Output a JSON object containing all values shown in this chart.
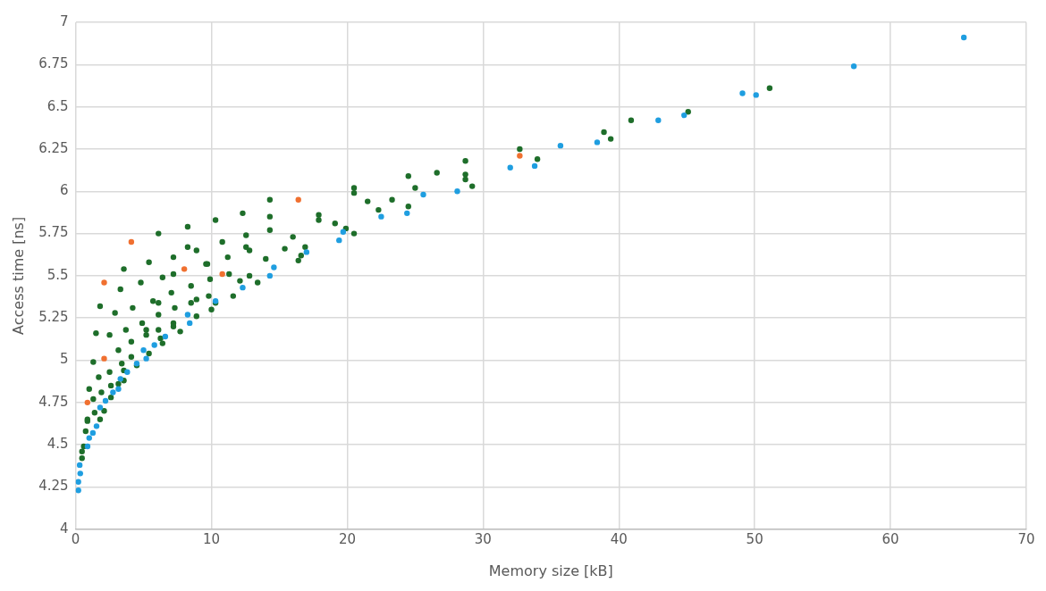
{
  "chart_data": {
    "type": "scatter",
    "xlabel": "Memory size [kB]",
    "ylabel": "Access time [ns]",
    "xlim": [
      0,
      70
    ],
    "xticks": [
      0,
      10,
      20,
      30,
      40,
      50,
      60,
      70
    ],
    "ylim": [
      4,
      7
    ],
    "yticks": [
      4,
      4.25,
      4.5,
      4.75,
      5,
      5.25,
      5.5,
      5.75,
      6,
      6.25,
      6.5,
      6.75,
      7
    ],
    "grid": true,
    "legend": false,
    "marker": "circle",
    "series": [
      {
        "color": "#1f9ee0",
        "x": [
          0.2,
          0.2,
          0.34,
          0.3,
          0.88,
          1.0,
          1.27,
          1.54,
          1.8,
          2.2,
          2.75,
          3.15,
          3.3,
          3.8,
          4.5,
          5.0,
          5.2,
          5.8,
          6.6,
          8.25,
          8.4,
          10.3,
          12.3,
          14.3,
          14.6,
          17.0,
          19.4,
          19.7,
          22.5,
          24.4,
          25.6,
          28.1,
          32.0,
          33.8,
          35.7,
          38.4,
          42.9,
          44.8,
          49.1,
          50.1,
          57.3,
          65.4
        ],
        "values": [
          4.23,
          4.28,
          4.33,
          4.38,
          4.49,
          4.54,
          4.57,
          4.61,
          4.72,
          4.76,
          4.81,
          4.83,
          4.89,
          4.93,
          4.98,
          5.06,
          5.01,
          5.09,
          5.14,
          5.27,
          5.22,
          5.35,
          5.43,
          5.5,
          5.55,
          5.64,
          5.71,
          5.76,
          5.85,
          5.87,
          5.98,
          6.0,
          6.14,
          6.15,
          6.27,
          6.29,
          6.42,
          6.45,
          6.58,
          6.57,
          6.74,
          6.91
        ]
      },
      {
        "color": "#1e6e2a",
        "x": [
          0.47,
          0.47,
          0.6,
          0.74,
          0.87,
          0.87,
          1.0,
          1.3,
          1.3,
          1.4,
          1.5,
          1.7,
          1.8,
          1.8,
          1.9,
          2.1,
          2.5,
          2.5,
          2.6,
          2.6,
          2.9,
          3.15,
          3.15,
          3.3,
          3.4,
          3.55,
          3.55,
          3.55,
          3.7,
          4.1,
          4.1,
          4.2,
          4.5,
          4.8,
          4.9,
          5.2,
          5.2,
          5.4,
          5.4,
          5.7,
          6.1,
          6.1,
          6.1,
          6.1,
          6.25,
          6.4,
          6.4,
          7.05,
          7.2,
          7.2,
          7.2,
          7.2,
          7.3,
          7.7,
          8.25,
          8.25,
          8.5,
          8.5,
          8.9,
          8.9,
          8.9,
          9.6,
          9.7,
          9.8,
          9.9,
          10.0,
          10.3,
          10.3,
          10.8,
          11.2,
          11.3,
          11.6,
          12.1,
          12.3,
          12.55,
          12.55,
          12.8,
          12.8,
          13.4,
          14.0,
          14.3,
          14.3,
          14.3,
          15.4,
          16.0,
          16.4,
          16.6,
          16.9,
          17.9,
          17.9,
          19.1,
          19.9,
          20.5,
          20.5,
          20.5,
          21.5,
          22.3,
          23.3,
          24.5,
          24.5,
          25.0,
          26.6,
          28.7,
          28.7,
          28.7,
          29.2,
          32.7,
          34.0,
          38.9,
          39.4,
          40.9,
          45.1,
          51.1
        ],
        "values": [
          4.42,
          4.46,
          4.49,
          4.58,
          4.64,
          4.65,
          4.83,
          4.77,
          4.99,
          4.69,
          5.16,
          4.9,
          4.65,
          5.32,
          4.81,
          4.7,
          5.15,
          4.93,
          4.78,
          4.85,
          5.28,
          4.86,
          5.06,
          5.42,
          4.98,
          4.94,
          4.88,
          5.54,
          5.18,
          5.11,
          5.02,
          5.31,
          4.97,
          5.46,
          5.22,
          5.18,
          5.15,
          5.58,
          5.04,
          5.35,
          5.75,
          5.34,
          5.27,
          5.18,
          5.13,
          5.49,
          5.1,
          5.4,
          5.61,
          5.51,
          5.22,
          5.2,
          5.31,
          5.17,
          5.79,
          5.67,
          5.44,
          5.34,
          5.65,
          5.36,
          5.26,
          5.57,
          5.57,
          5.38,
          5.48,
          5.3,
          5.83,
          5.34,
          5.7,
          5.61,
          5.51,
          5.38,
          5.47,
          5.87,
          5.74,
          5.67,
          5.65,
          5.5,
          5.46,
          5.6,
          5.95,
          5.85,
          5.77,
          5.66,
          5.73,
          5.59,
          5.62,
          5.67,
          5.86,
          5.83,
          5.81,
          5.78,
          5.75,
          6.02,
          5.99,
          5.94,
          5.89,
          5.95,
          6.09,
          5.91,
          6.02,
          6.11,
          6.18,
          6.1,
          6.07,
          6.03,
          6.25,
          6.19,
          6.35,
          6.31,
          6.42,
          6.47,
          6.61
        ]
      },
      {
        "color": "#f07030",
        "x": [
          0.87,
          2.1,
          2.1,
          4.1,
          8.0,
          10.8,
          16.4,
          32.7
        ],
        "values": [
          4.75,
          5.01,
          5.46,
          5.7,
          5.54,
          5.51,
          5.95,
          6.21
        ]
      }
    ]
  }
}
